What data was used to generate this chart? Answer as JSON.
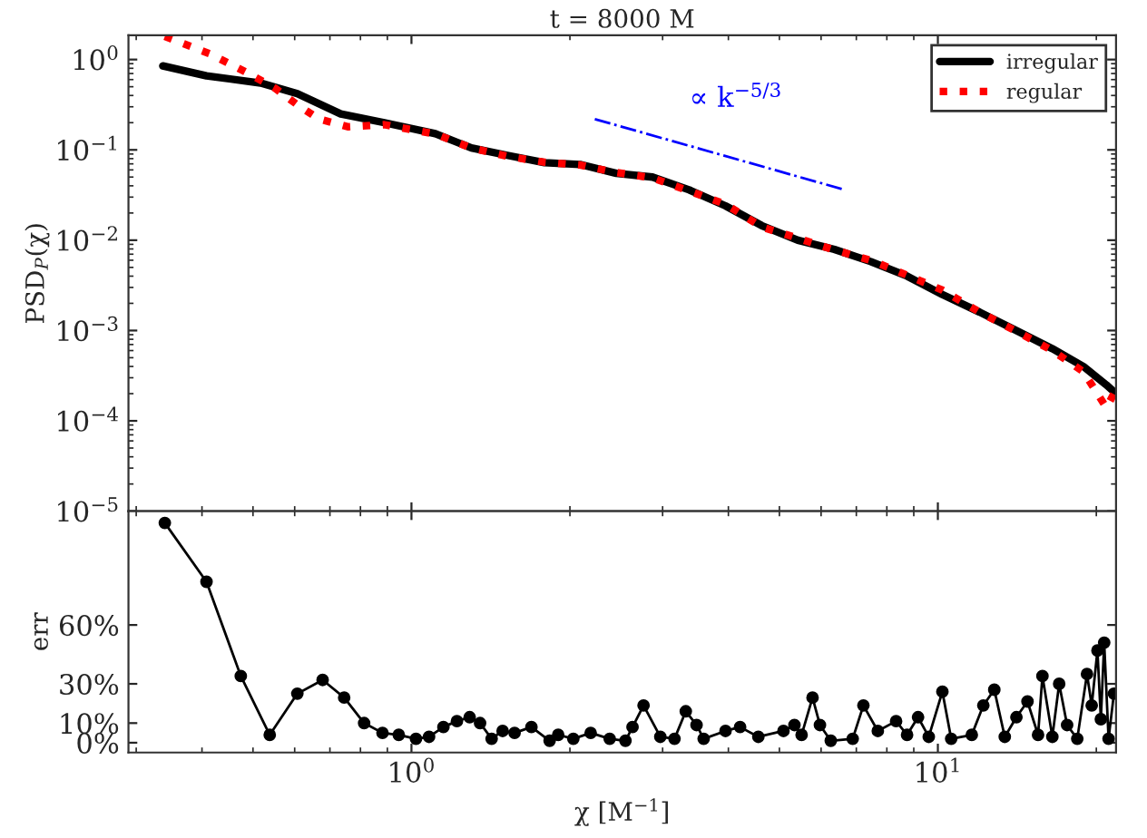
{
  "chart_data": [
    {
      "type": "line",
      "title": "t = 8000 M",
      "ylabel": "PSD$_{P}$(χ)",
      "log": "xy",
      "tick_labels": "y",
      "legend": "top right",
      "grid": false,
      "xlim": [
        0.29,
        21.8
      ],
      "ylim": [
        1e-05,
        1.86
      ],
      "yticks": [
        {
          "value": 1e-05,
          "label": "10$^{−5}$"
        },
        {
          "value": 0.0001,
          "label": "10$^{−4}$"
        },
        {
          "value": 0.001,
          "label": "10$^{−3}$"
        },
        {
          "value": 0.01,
          "label": "10$^{−2}$"
        },
        {
          "value": 0.1,
          "label": "10$^{−1}$"
        },
        {
          "value": 1,
          "label": "10$^{0}$"
        }
      ],
      "annotations": [
        "∝ k$^{−5/3}$"
      ],
      "series": [
        {
          "name": "irregular",
          "color": "#000000",
          "line_style": "solid",
          "x": [
            0.337,
            0.408,
            0.517,
            0.607,
            0.734,
            0.888,
            1.11,
            1.3,
            1.52,
            1.79,
            2.09,
            2.45,
            2.87,
            3.37,
            3.95,
            4.63,
            5.42,
            6.36,
            7.45,
            8.74,
            10.2,
            12.0,
            14.1,
            16.5,
            18.9,
            20.9,
            21.6
          ],
          "values": [
            0.85,
            0.66,
            0.55,
            0.42,
            0.25,
            0.2,
            0.151,
            0.105,
            0.087,
            0.072,
            0.069,
            0.055,
            0.05,
            0.036,
            0.024,
            0.0145,
            0.01,
            0.0079,
            0.0058,
            0.004,
            0.0025,
            0.0016,
            0.001,
            0.00063,
            0.0004,
            0.00025,
            0.00021
          ]
        },
        {
          "name": "regular",
          "color": "#ff0000",
          "line_style": "dotted",
          "x": [
            0.34,
            0.415,
            0.486,
            0.551,
            0.607,
            0.667,
            0.757,
            0.888,
            1.11,
            1.3,
            1.52,
            1.79,
            2.09,
            2.45,
            2.87,
            3.37,
            3.95,
            4.63,
            5.42,
            6.36,
            7.45,
            8.74,
            10.2,
            12.0,
            14.1,
            16.5,
            18.9,
            20.9,
            21.6
          ],
          "values": [
            1.8,
            1.15,
            0.72,
            0.48,
            0.316,
            0.22,
            0.18,
            0.19,
            0.15,
            0.105,
            0.085,
            0.073,
            0.068,
            0.056,
            0.049,
            0.035,
            0.025,
            0.014,
            0.0105,
            0.0078,
            0.006,
            0.0041,
            0.0028,
            0.0016,
            0.00098,
            0.0006,
            0.00035,
            0.00014,
            0.0002
          ]
        },
        {
          "color": "#0000ff",
          "line_style": "dashed",
          "x": [
            2.23,
            6.67
          ],
          "values": [
            0.219,
            0.036
          ]
        }
      ]
    },
    {
      "type": "line",
      "xlabel": "χ [M$^{−1}$]",
      "ylabel": "err",
      "log": "x",
      "marker": "circle",
      "grid": false,
      "xlim": [
        0.29,
        21.8
      ],
      "xticks": [
        {
          "value": 1,
          "label": "10$^{0}$"
        },
        {
          "value": 10,
          "label": "10$^{1}$"
        }
      ],
      "ylim": [
        -5,
        118
      ],
      "yticks": [
        {
          "value": 0,
          "label": "0%"
        },
        {
          "value": 10,
          "label": "10%"
        },
        {
          "value": 30,
          "label": "30%"
        },
        {
          "value": 60,
          "label": "60%"
        }
      ],
      "series": [
        {
          "color": "#000000",
          "line_style": "solid",
          "x": [
            0.34,
            0.408,
            0.474,
            0.538,
            0.607,
            0.678,
            0.745,
            0.813,
            0.881,
            0.946,
            1.02,
            1.08,
            1.15,
            1.22,
            1.29,
            1.35,
            1.42,
            1.49,
            1.57,
            1.69,
            1.83,
            1.9,
            2.03,
            2.19,
            2.38,
            2.55,
            2.63,
            2.76,
            2.97,
            3.16,
            3.32,
            3.48,
            3.59,
            3.95,
            4.21,
            4.56,
            5.09,
            5.34,
            5.51,
            5.78,
            5.97,
            6.26,
            6.89,
            7.22,
            7.69,
            8.33,
            8.74,
            9.17,
            9.61,
            10.2,
            10.6,
            11.6,
            12.2,
            12.8,
            13.4,
            14.1,
            14.8,
            15.5,
            15.8,
            16.5,
            17.0,
            17.6,
            18.4,
            19.2,
            19.6,
            20.1,
            20.4,
            20.7,
            21.1,
            21.6
          ],
          "values": [
            112,
            82,
            34,
            4,
            25,
            32,
            23,
            10,
            5,
            4,
            2,
            3,
            8,
            11,
            13,
            10,
            2,
            6,
            5,
            8,
            1,
            4,
            2,
            5,
            2,
            1,
            8,
            19,
            3,
            2,
            16,
            9,
            2,
            6,
            8,
            3,
            6,
            9,
            4,
            23,
            9,
            1,
            2,
            19,
            6,
            11,
            4,
            13,
            3,
            26,
            2,
            4,
            19,
            27,
            3,
            13,
            21,
            4,
            34,
            3,
            30,
            9,
            2,
            35,
            19,
            47,
            12,
            51,
            2,
            25
          ]
        }
      ]
    }
  ]
}
